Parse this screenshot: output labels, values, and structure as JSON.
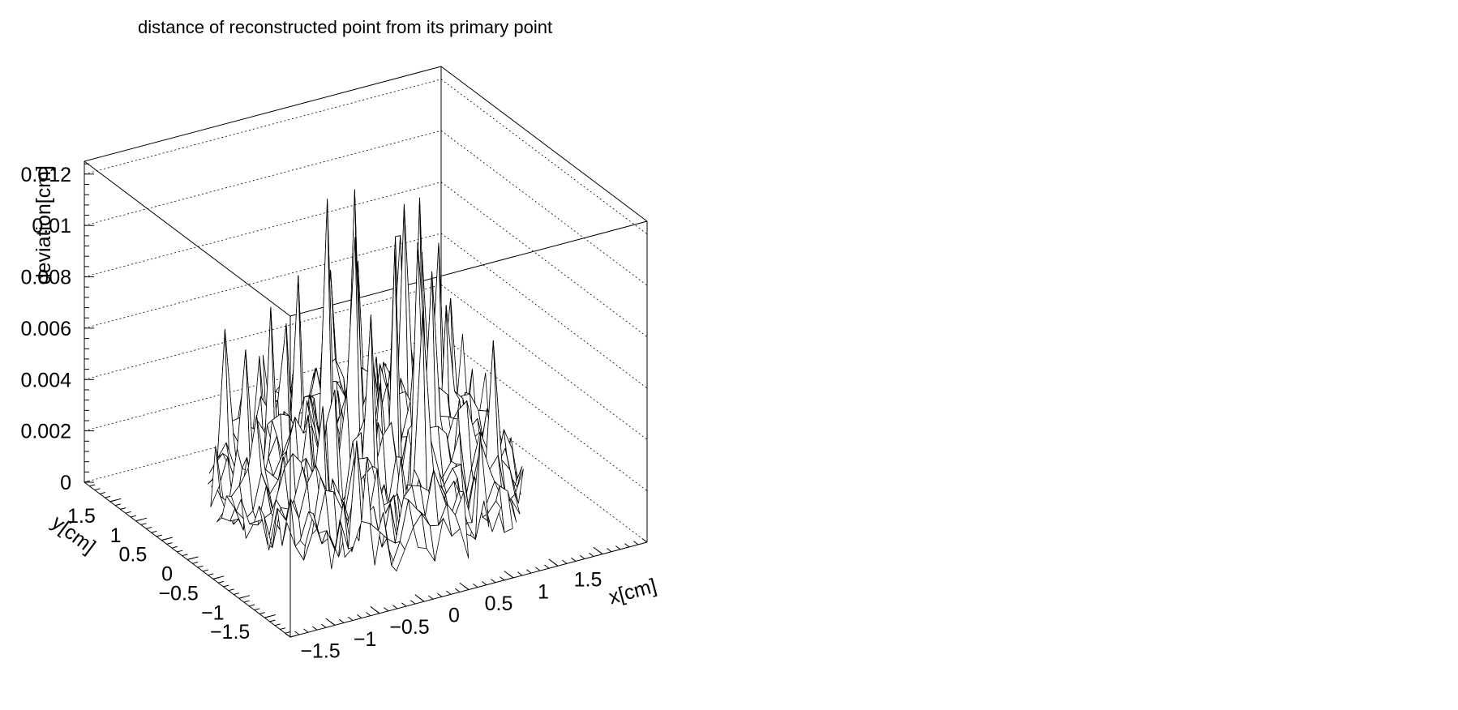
{
  "chart_data": {
    "type": "surface",
    "title": "distance of reconstructed point from its primary point",
    "xlabel": "x[cm]",
    "ylabel": "y[cm]",
    "zlabel": "deviation[cm]",
    "xlim": [
      -2,
      2
    ],
    "ylim": [
      -2,
      2
    ],
    "zlim": [
      0,
      0.0125
    ],
    "x_ticks": [
      -1.5,
      -1,
      -0.5,
      0,
      0.5,
      1,
      1.5
    ],
    "y_ticks": [
      -1.5,
      -1,
      -0.5,
      0,
      0.5,
      1,
      1.5
    ],
    "z_ticks": [
      0,
      0.002,
      0.004,
      0.006,
      0.008,
      0.01,
      0.012
    ],
    "x_tick_labels": [
      "−1.5",
      "−1",
      "−0.5",
      "0",
      "0.5",
      "1",
      "1.5"
    ],
    "y_tick_labels": [
      "−1.5",
      "−1",
      "−0.5",
      "0",
      "0.5",
      "1",
      "1.5"
    ],
    "z_tick_labels": [
      "0",
      "0.002",
      "0.004",
      "0.006",
      "0.008",
      "0.01",
      "0.012"
    ],
    "grid": true,
    "surface_region": "disk of radius 1.5 cm",
    "typical_z": 0.004,
    "peak_z": 0.0124,
    "line_color": "#000000",
    "background_color": "#ffffff"
  }
}
